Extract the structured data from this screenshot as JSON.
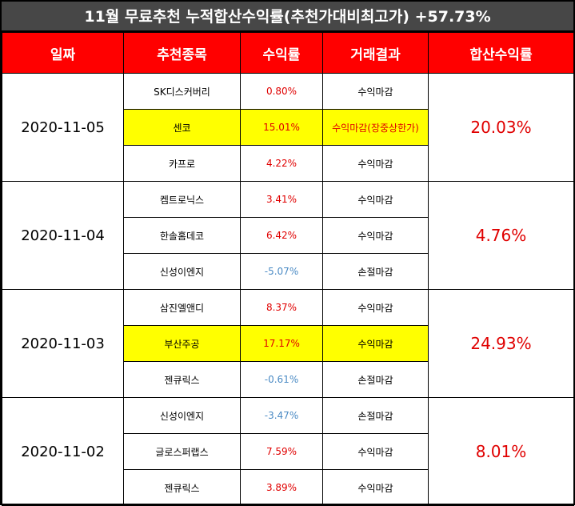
{
  "title": "11월 무료추천 누적합산수익률(추천가대비최고가) +57.73%",
  "headers": [
    "일짜",
    "추천종목",
    "수익률",
    "거래결과",
    "합산수익률"
  ],
  "groups": [
    {
      "date": "2020-11-05",
      "total": "20.03%",
      "rows": [
        {
          "stock": "SK디스커버리",
          "ret": "0.80%",
          "result": "수익마감",
          "highlight": false,
          "neg": false,
          "result_red": false
        },
        {
          "stock": "센코",
          "ret": "15.01%",
          "result": "수익마감(장중상한가)",
          "highlight": true,
          "neg": false,
          "result_red": true
        },
        {
          "stock": "카프로",
          "ret": "4.22%",
          "result": "수익마감",
          "highlight": false,
          "neg": false,
          "result_red": false
        }
      ]
    },
    {
      "date": "2020-11-04",
      "total": "4.76%",
      "rows": [
        {
          "stock": "켐트로닉스",
          "ret": "3.41%",
          "result": "수익마감",
          "highlight": false,
          "neg": false,
          "result_red": false
        },
        {
          "stock": "한솔홈데코",
          "ret": "6.42%",
          "result": "수익마감",
          "highlight": false,
          "neg": false,
          "result_red": false
        },
        {
          "stock": "신성이엔지",
          "ret": "-5.07%",
          "result": "손절마감",
          "highlight": false,
          "neg": true,
          "result_red": false
        }
      ]
    },
    {
      "date": "2020-11-03",
      "total": "24.93%",
      "rows": [
        {
          "stock": "삼진엘앤디",
          "ret": "8.37%",
          "result": "수익마감",
          "highlight": false,
          "neg": false,
          "result_red": false
        },
        {
          "stock": "부산주공",
          "ret": "17.17%",
          "result": "수익마감",
          "highlight": true,
          "neg": false,
          "result_red": false
        },
        {
          "stock": "젠큐릭스",
          "ret": "-0.61%",
          "result": "손절마감",
          "highlight": false,
          "neg": true,
          "result_red": false
        }
      ]
    },
    {
      "date": "2020-11-02",
      "total": "8.01%",
      "rows": [
        {
          "stock": "신성이엔지",
          "ret": "-3.47%",
          "result": "손절마감",
          "highlight": false,
          "neg": true,
          "result_red": false
        },
        {
          "stock": "글로스퍼랩스",
          "ret": "7.59%",
          "result": "수익마감",
          "highlight": false,
          "neg": false,
          "result_red": false
        },
        {
          "stock": "젠큐릭스",
          "ret": "3.89%",
          "result": "수익마감",
          "highlight": false,
          "neg": false,
          "result_red": false
        }
      ]
    }
  ],
  "colors": {
    "header_bg": "#ff0000",
    "title_bg": "#474747",
    "highlight": "#ffff00",
    "positive": "#e00000",
    "negative": "#4a8ac4"
  }
}
